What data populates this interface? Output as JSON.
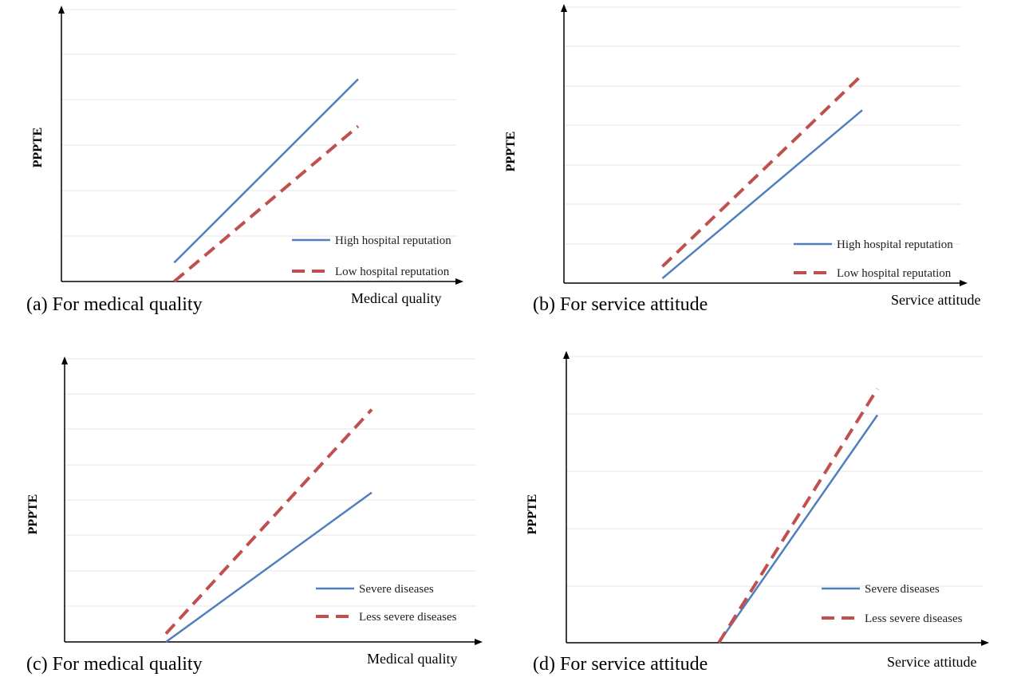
{
  "chart_data": [
    {
      "type": "line",
      "title": "(a) For medical quality",
      "xlabel": "Medical quality",
      "ylabel": "PPPTE",
      "grid": true,
      "legend": "bottom-right",
      "colors": {
        "solid": "#4f7fbd",
        "dashed": "#c0504d"
      },
      "series": [
        {
          "name": "High hospital reputation",
          "style": "solid",
          "x": [
            0.38,
            1.0
          ],
          "y": [
            0.08,
            0.86
          ]
        },
        {
          "name": "Low hospital reputation",
          "style": "dashed",
          "x": [
            0.38,
            1.0
          ],
          "y": [
            0.0,
            0.66
          ]
        }
      ]
    },
    {
      "type": "line",
      "title": "(b) For service attitude",
      "xlabel": "Service attitude",
      "ylabel": "PPPTE",
      "grid": true,
      "legend": "bottom-right",
      "colors": {
        "solid": "#4f7fbd",
        "dashed": "#c0504d"
      },
      "series": [
        {
          "name": "High hospital reputation",
          "style": "solid",
          "x": [
            0.33,
            1.0
          ],
          "y": [
            0.02,
            0.73
          ]
        },
        {
          "name": "Low hospital reputation",
          "style": "dashed",
          "x": [
            0.33,
            1.0
          ],
          "y": [
            0.07,
            0.88
          ]
        }
      ]
    },
    {
      "type": "line",
      "title": "(c) For medical quality",
      "xlabel": "Medical quality",
      "ylabel": "PPPTE",
      "grid": true,
      "legend": "bottom-right",
      "colors": {
        "solid": "#4f7fbd",
        "dashed": "#c0504d"
      },
      "series": [
        {
          "name": "Severe diseases",
          "style": "solid",
          "x": [
            0.33,
            1.0
          ],
          "y": [
            0.0,
            0.54
          ]
        },
        {
          "name": "Less severe diseases",
          "style": "dashed",
          "x": [
            0.33,
            1.0
          ],
          "y": [
            0.03,
            0.84
          ]
        }
      ]
    },
    {
      "type": "line",
      "title": "(d) For service attitude",
      "xlabel": "Service attitude",
      "ylabel": "PPPTE",
      "grid": true,
      "legend": "bottom-right",
      "colors": {
        "solid": "#4f7fbd",
        "dashed": "#c0504d"
      },
      "series": [
        {
          "name": "Severe diseases",
          "style": "solid",
          "x": [
            0.49,
            1.0
          ],
          "y": [
            0.0,
            0.78
          ]
        },
        {
          "name": "Less severe diseases",
          "style": "dashed",
          "x": [
            0.49,
            1.0
          ],
          "y": [
            0.0,
            0.87
          ]
        }
      ]
    }
  ]
}
